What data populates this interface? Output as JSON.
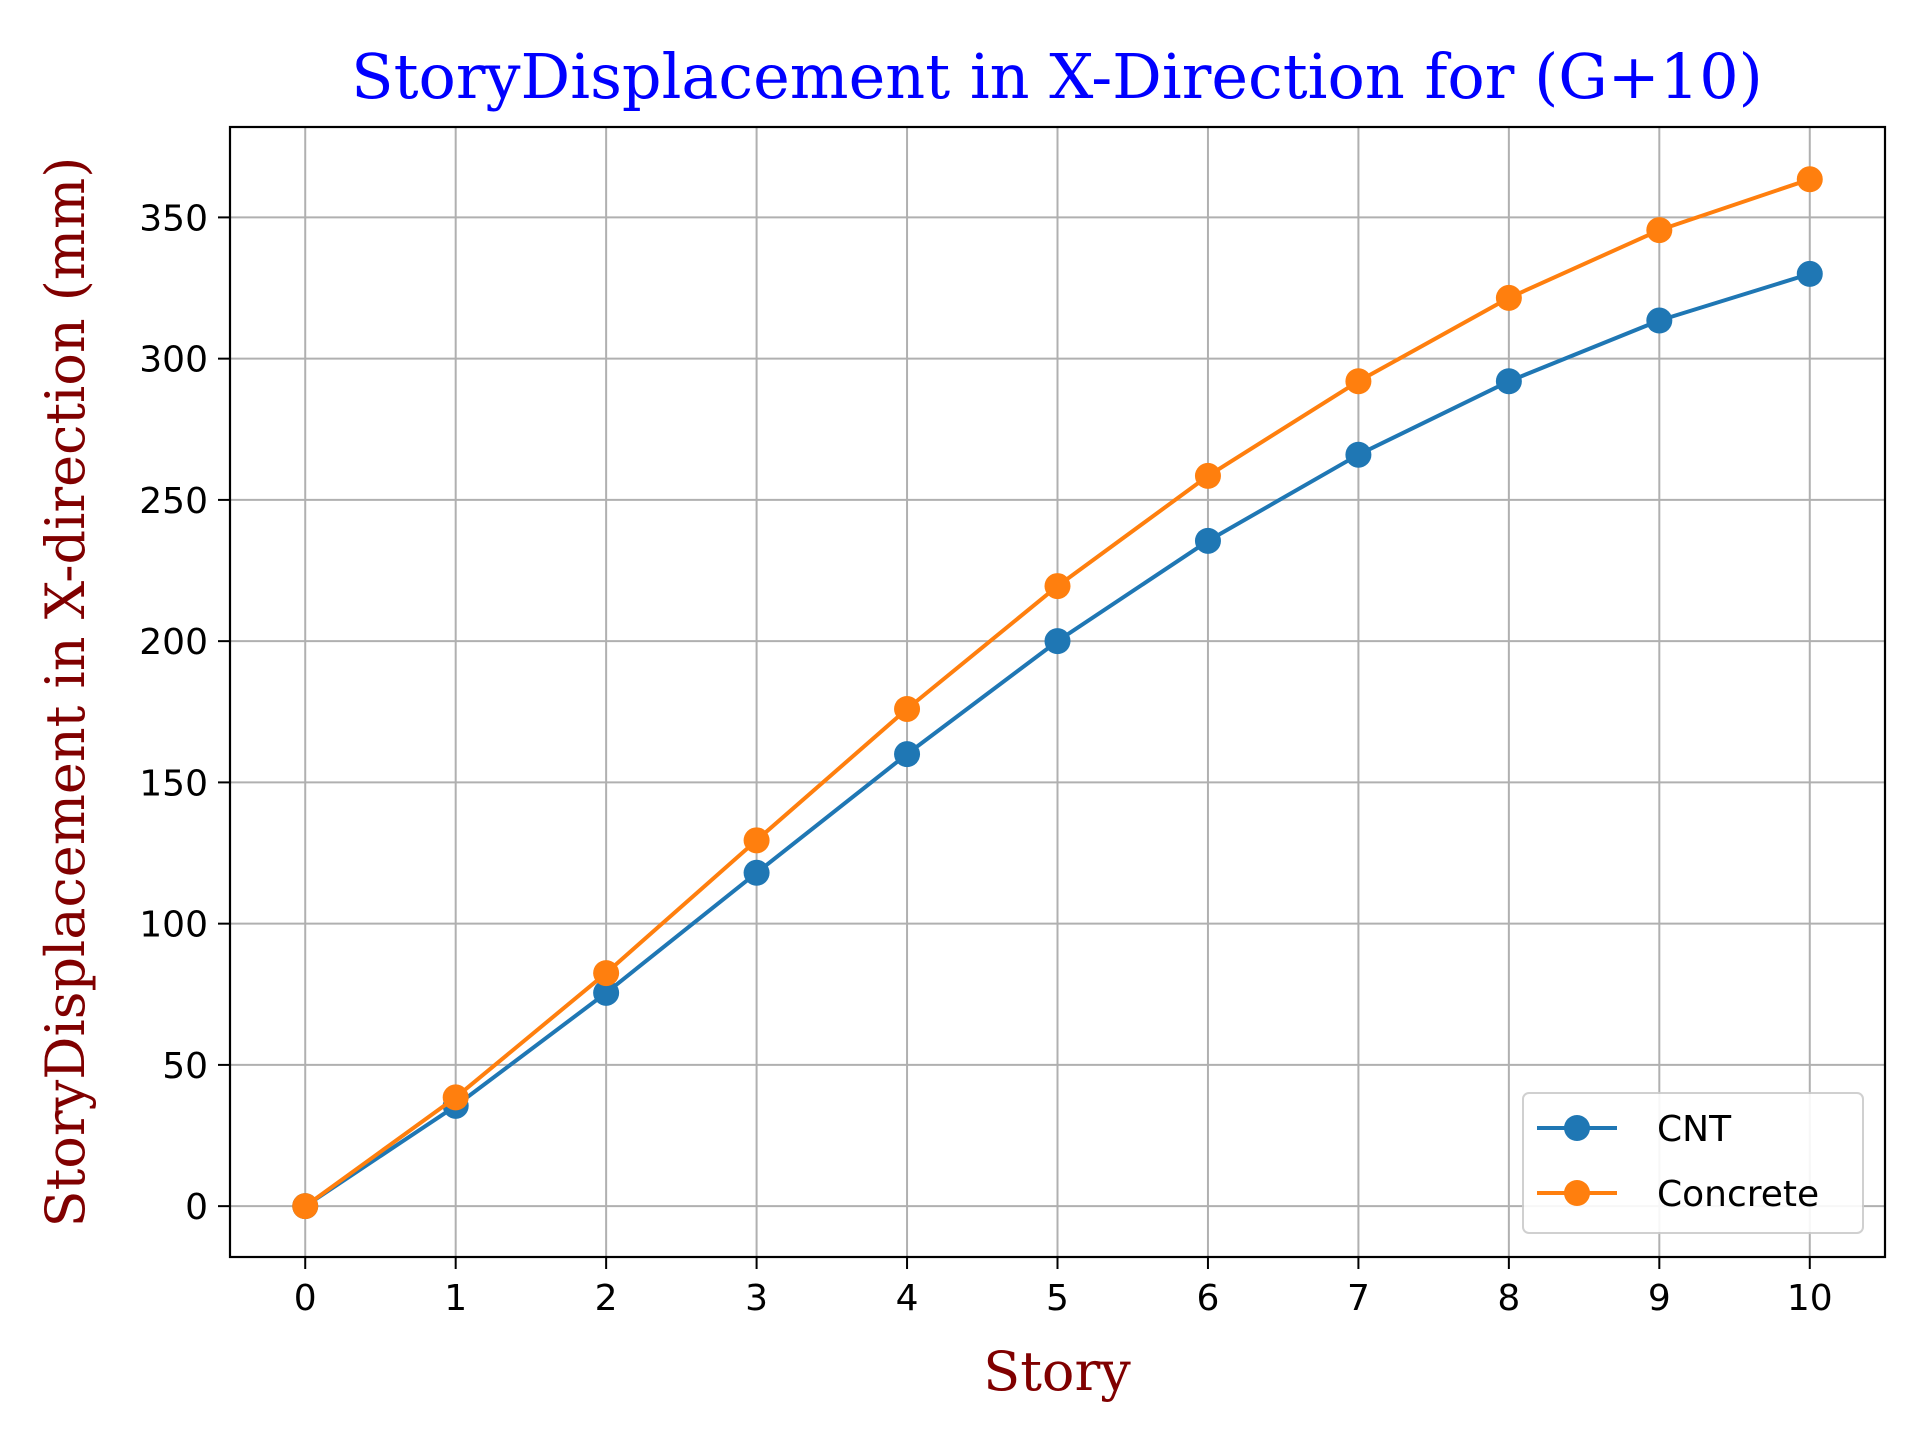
{
  "chart_data": {
    "type": "line",
    "title": "StoryDisplacement in X-Direction for (G+10)",
    "xlabel": "Story",
    "ylabel": "StoryDisplacement in X-direction (mm)",
    "x": [
      0,
      1,
      2,
      3,
      4,
      5,
      6,
      7,
      8,
      9,
      10
    ],
    "x_ticks": [
      0,
      1,
      2,
      3,
      4,
      5,
      6,
      7,
      8,
      9,
      10
    ],
    "y_ticks": [
      0,
      50,
      100,
      150,
      200,
      250,
      300,
      350
    ],
    "xlim": [
      -0.5,
      10.5
    ],
    "ylim": [
      -18,
      382
    ],
    "grid": true,
    "legend_position": "bottom-right",
    "series": [
      {
        "name": "CNT",
        "color": "#1f77b4",
        "marker": "circle",
        "values": [
          0,
          35.5,
          75.5,
          118,
          160,
          200,
          235.5,
          266,
          292,
          313.5,
          330
        ]
      },
      {
        "name": "Concrete",
        "color": "#ff7f0e",
        "marker": "circle",
        "values": [
          0,
          38.5,
          82.5,
          129.5,
          176,
          219.5,
          258.5,
          292,
          321.5,
          345.5,
          363.5
        ]
      }
    ],
    "colors": {
      "title": "#0000ff",
      "axis_label": "#800000",
      "grid": "#b0b0b0"
    }
  }
}
